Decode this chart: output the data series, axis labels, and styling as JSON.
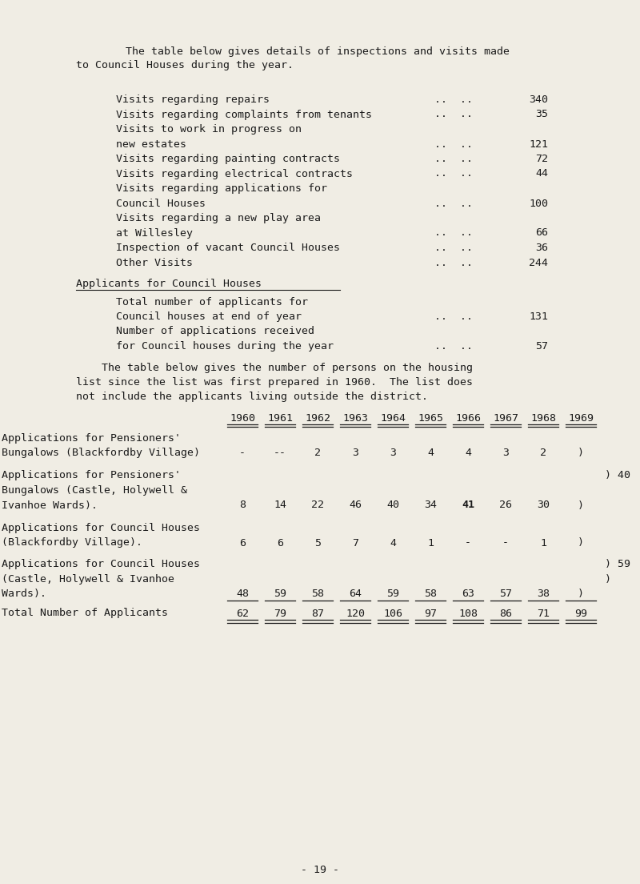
{
  "bg_color": "#f0ede4",
  "text_color": "#1a1a1a",
  "page_number": "- 19 -",
  "intro1": "    The table below gives details of inspections and visits made",
  "intro2": "to Council Houses during the year.",
  "visit_rows": [
    [
      "Visits regarding repairs",
      "340"
    ],
    [
      "Visits regarding complaints from tenants",
      "35"
    ],
    [
      "Visits to work in progress on",
      ""
    ],
    [
      "new estates",
      "121"
    ],
    [
      "Visits regarding painting contracts",
      "72"
    ],
    [
      "Visits regarding electrical contracts",
      "44"
    ],
    [
      "Visits regarding applications for",
      ""
    ],
    [
      "Council Houses",
      "100"
    ],
    [
      "Visits regarding a new play area",
      ""
    ],
    [
      "at Willesley",
      "66"
    ],
    [
      "Inspection of vacant Council Houses",
      "36"
    ],
    [
      "Other Visits",
      "244"
    ]
  ],
  "appl_heading": "Applicants for Council Houses",
  "appl_rows": [
    [
      "Total number of applicants for",
      ""
    ],
    [
      "Council houses at end of year",
      "131"
    ],
    [
      "Number of applications received",
      ""
    ],
    [
      "for Council houses during the year",
      "57"
    ]
  ],
  "table_intro1": "    The table below gives the number of persons on the housing",
  "table_intro2": "list since the list was first prepared in 1960.  The list does",
  "table_intro3": "not include the applicants living outside the district.",
  "years": [
    "1960",
    "1961",
    "1962",
    "1963",
    "1964",
    "1965",
    "1966",
    "1967",
    "1968",
    "1969"
  ],
  "trow1_labels": [
    "Applications for Pensioners'",
    "Bungalows (Blackfordby Village)"
  ],
  "trow1_vals": [
    "-",
    "--",
    "2",
    "3",
    "3",
    "4",
    "4",
    "3",
    "2",
    ")"
  ],
  "trow1_right": "",
  "trow2_labels": [
    "Applications for Pensioners'",
    "Bungalows (Castle, Holywell &",
    "Ivanhoe Wards)."
  ],
  "trow2_vals": [
    "8",
    "14",
    "22",
    "46",
    "40",
    "34",
    "41",
    "26",
    "30",
    ")"
  ],
  "trow2_right": ") 40",
  "trow2_bold_idx": 6,
  "trow3_labels": [
    "Applications for Council Houses",
    "(Blackfordby Village)."
  ],
  "trow3_vals": [
    "6",
    "6",
    "5",
    "7",
    "4",
    "1",
    "-",
    "-",
    "1",
    ")"
  ],
  "trow3_right": "",
  "trow4_labels": [
    "Applications for Council Houses",
    "(Castle, Holywell & Ivanhoe",
    "Wards)."
  ],
  "trow4_vals": [
    "48",
    "59",
    "58",
    "64",
    "59",
    "58",
    "63",
    "57",
    "38",
    ")"
  ],
  "trow4_right_lines": [
    ") 59",
    ")"
  ],
  "trow5_labels": [
    "Total Number of Applicants"
  ],
  "trow5_vals": [
    "62",
    "79",
    "87",
    "120",
    "106",
    "97",
    "108",
    "86",
    "71",
    "99"
  ]
}
